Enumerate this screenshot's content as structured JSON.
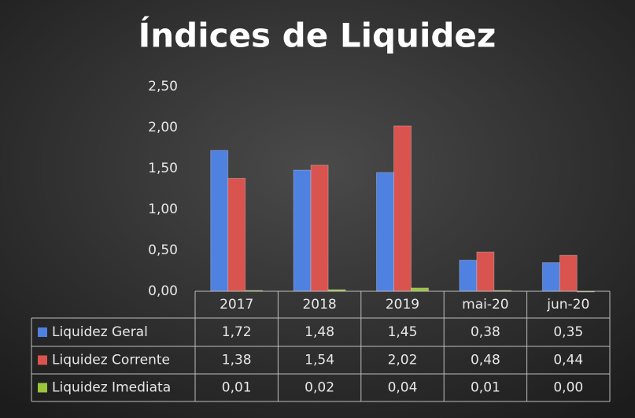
{
  "chart_data": {
    "type": "bar",
    "title": "Índices de Liquidez",
    "categories": [
      "2017",
      "2018",
      "2019",
      "mai-20",
      "jun-20"
    ],
    "series": [
      {
        "name": "Liquidez Geral",
        "color": "#4f81e0",
        "values": [
          1.72,
          1.48,
          1.45,
          0.38,
          0.35
        ],
        "value_labels": [
          "1,72",
          "1,48",
          "1,45",
          "0,38",
          "0,35"
        ]
      },
      {
        "name": "Liquidez Corrente",
        "color": "#d9534f",
        "values": [
          1.38,
          1.54,
          2.02,
          0.48,
          0.44
        ],
        "value_labels": [
          "1,38",
          "1,54",
          "2,02",
          "0,48",
          "0,44"
        ]
      },
      {
        "name": "Liquidez Imediata",
        "color": "#9bc53d",
        "values": [
          0.01,
          0.02,
          0.04,
          0.01,
          0.0
        ],
        "value_labels": [
          "0,01",
          "0,02",
          "0,04",
          "0,01",
          "0,00"
        ]
      }
    ],
    "ylim": [
      0,
      2.5
    ],
    "yticks": [
      {
        "value": 0,
        "label": "0,00"
      },
      {
        "value": 0.5,
        "label": "0,50"
      },
      {
        "value": 1,
        "label": "1,00"
      },
      {
        "value": 1.5,
        "label": "1,50"
      },
      {
        "value": 2,
        "label": "2,00"
      },
      {
        "value": 2.5,
        "label": "2,50"
      }
    ],
    "grid": false,
    "legend": "table"
  }
}
